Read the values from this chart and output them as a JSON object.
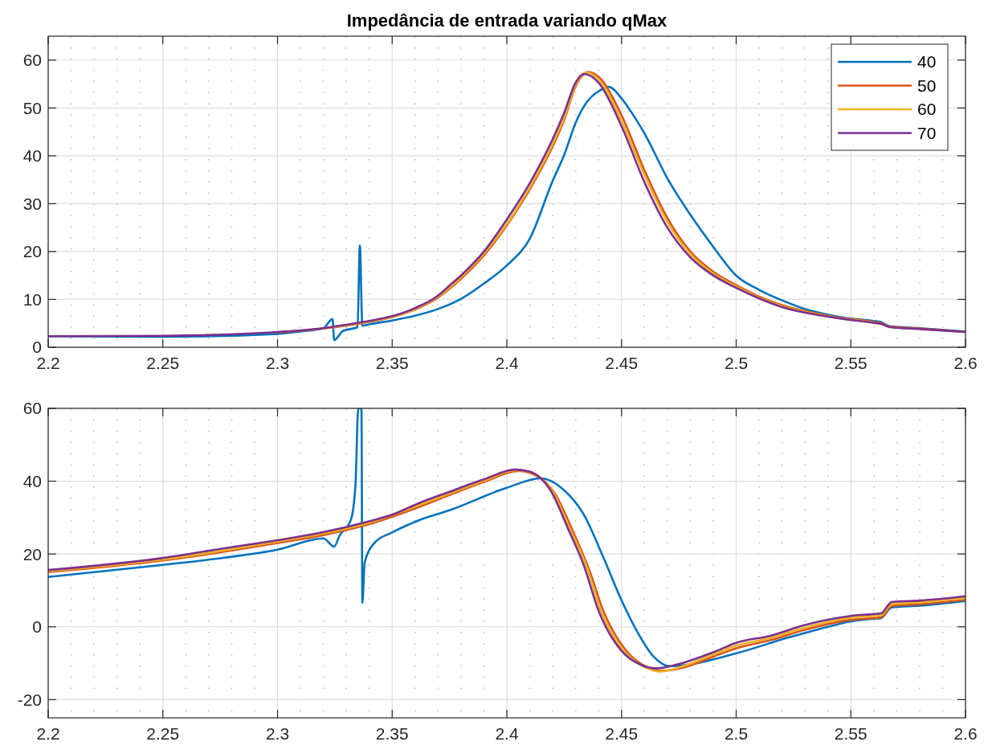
{
  "chart_data": [
    {
      "type": "line",
      "title": "Impedância de entrada variando qMax",
      "xlim": [
        2.2,
        2.6
      ],
      "xticks": [
        2.2,
        2.25,
        2.3,
        2.35,
        2.4,
        2.45,
        2.5,
        2.55,
        2.6
      ],
      "ylim": [
        0,
        65
      ],
      "yticks": [
        0,
        10,
        20,
        30,
        40,
        50,
        60
      ],
      "grid": true,
      "legend": "top right",
      "line_style": "solid",
      "marker": "none",
      "series": [
        {
          "name": "40",
          "color": "#0072bd",
          "x": [
            2.2,
            2.25,
            2.3,
            2.31,
            2.32,
            2.324,
            2.3247,
            2.3285,
            2.3349,
            2.3359,
            2.337,
            2.34,
            2.35,
            2.36,
            2.37,
            2.38,
            2.39,
            2.4,
            2.41,
            2.42,
            2.425,
            2.43,
            2.435,
            2.44,
            2.4445,
            2.45,
            2.455,
            2.46,
            2.47,
            2.48,
            2.49,
            2.5,
            2.51,
            2.52,
            2.53,
            2.54,
            2.55,
            2.56,
            2.563,
            2.567,
            2.58,
            2.6
          ],
          "values": [
            2.3,
            2.2,
            2.8,
            3.3,
            4.0,
            5.9,
            1.5,
            3.4,
            4.2,
            21.3,
            4.5,
            4.8,
            5.6,
            6.6,
            8,
            10.1,
            13.3,
            17.1,
            22.7,
            34.8,
            40.2,
            46.9,
            51.3,
            53.5,
            54.4,
            52,
            48.6,
            44.7,
            35.3,
            27.7,
            21,
            15,
            12,
            9.8,
            8,
            6.8,
            6,
            5.5,
            5.3,
            4.4,
            4,
            3.3
          ]
        },
        {
          "name": "50",
          "color": "#d95319",
          "x": [
            2.3,
            2.32,
            2.34,
            2.35,
            2.36,
            2.37,
            2.38,
            2.39,
            2.4,
            2.41,
            2.42,
            2.425,
            2.43,
            2.4354,
            2.44,
            2.45,
            2.46,
            2.47,
            2.48,
            2.49,
            2.5,
            2.51,
            2.52,
            2.54,
            2.56,
            2.563,
            2.567,
            2.58,
            2.6
          ],
          "values": [
            3.1,
            3.9,
            5.3,
            6.3,
            7.9,
            10.4,
            14.3,
            19.2,
            25.5,
            33,
            42,
            47.5,
            54.5,
            57.5,
            56.5,
            48.5,
            37,
            27,
            20,
            15.8,
            13,
            10.6,
            8.8,
            6.6,
            5.3,
            5.1,
            4.3,
            3.9,
            3.2
          ]
        },
        {
          "name": "60",
          "color": "#edb120",
          "x": [
            2.32,
            2.34,
            2.35,
            2.36,
            2.37,
            2.38,
            2.39,
            2.4,
            2.41,
            2.42,
            2.425,
            2.43,
            2.4348,
            2.44,
            2.45,
            2.46,
            2.47,
            2.48,
            2.49,
            2.5,
            2.51,
            2.52,
            2.54,
            2.56
          ],
          "values": [
            4,
            5.4,
            6.4,
            8,
            10.6,
            14.6,
            19.6,
            25.8,
            33.4,
            42.5,
            48,
            54.8,
            57.4,
            56,
            47.3,
            36,
            26.2,
            19.5,
            15.4,
            12.7,
            10.4,
            8.6,
            6.5,
            5.2
          ]
        },
        {
          "name": "70",
          "color": "#7e2f8e",
          "x": [
            2.2,
            2.25,
            2.3,
            2.32,
            2.33,
            2.34,
            2.35,
            2.36,
            2.37,
            2.375,
            2.38,
            2.39,
            2.4,
            2.41,
            2.42,
            2.425,
            2.43,
            2.4336,
            2.44,
            2.45,
            2.46,
            2.47,
            2.48,
            2.49,
            2.5,
            2.51,
            2.52,
            2.54,
            2.56,
            2.563,
            2.567,
            2.58,
            2.6
          ],
          "values": [
            2.3,
            2.4,
            3.2,
            4.0,
            4.7,
            5.5,
            6.5,
            8.2,
            10.8,
            12.9,
            15,
            20,
            26.7,
            34.3,
            43.5,
            49,
            55.3,
            57.1,
            55.3,
            46.2,
            34.5,
            25,
            18.8,
            15,
            12.4,
            10.2,
            8.4,
            6.4,
            5.1,
            4.9,
            4.2,
            3.8,
            3.2
          ]
        }
      ]
    },
    {
      "type": "line",
      "xlim": [
        2.2,
        2.6
      ],
      "xticks": [
        2.2,
        2.25,
        2.3,
        2.35,
        2.4,
        2.45,
        2.5,
        2.55,
        2.6
      ],
      "ylim": [
        -25,
        60
      ],
      "yticks": [
        -20,
        0,
        20,
        40,
        60
      ],
      "grid": true,
      "legend": false,
      "line_style": "solid",
      "marker": "none",
      "series": [
        {
          "color": "#0072bd",
          "x": [
            2.2,
            2.25,
            2.277,
            2.3,
            2.32,
            2.3247,
            2.327,
            2.332,
            2.334,
            2.3352,
            2.3366,
            2.337,
            2.338,
            2.3425,
            2.3496,
            2.361,
            2.375,
            2.4,
            2.4147,
            2.425,
            2.4335,
            2.442,
            2.45,
            2.457,
            2.464,
            2.471,
            2.48,
            2.5,
            2.5225,
            2.54,
            2.55,
            2.56,
            2.5632,
            2.5678,
            2.58,
            2.6
          ],
          "values": [
            13.7,
            17,
            19,
            21.2,
            24.3,
            22,
            25,
            29.4,
            39,
            60,
            60,
            6.6,
            17.6,
            23.2,
            25.8,
            29.1,
            32,
            38.2,
            40.8,
            37.5,
            30.9,
            19.2,
            7.3,
            -1.5,
            -8.2,
            -10.8,
            -10.3,
            -7.3,
            -3,
            0,
            1.5,
            2.2,
            2.4,
            5.3,
            5.8,
            7.1
          ]
        },
        {
          "color": "#d95319",
          "x": [
            2.2,
            2.25,
            2.3,
            2.32,
            2.34,
            2.36,
            2.375,
            2.39,
            2.405,
            2.413,
            2.421,
            2.429,
            2.436,
            2.442,
            2.452,
            2.461,
            2.468,
            2.477,
            2.49,
            2.5,
            2.5153,
            2.53,
            2.55,
            2.56,
            2.5632,
            2.5678,
            2.58,
            2.6
          ],
          "values": [
            15,
            18.2,
            23,
            25.2,
            28.2,
            32.5,
            36.2,
            39.8,
            42.8,
            41.5,
            36.5,
            26,
            15.5,
            4.5,
            -6.5,
            -11,
            -12.1,
            -11.2,
            -8.2,
            -5.9,
            -3.6,
            -0.8,
            1.9,
            2.4,
            2.6,
            5.7,
            6.2,
            7.4
          ]
        },
        {
          "color": "#edb120",
          "x": [
            2.2,
            2.25,
            2.3,
            2.32,
            2.34,
            2.36,
            2.375,
            2.39,
            2.404,
            2.412,
            2.42,
            2.428,
            2.435,
            2.441,
            2.451,
            2.46,
            2.467,
            2.476,
            2.49,
            2.5,
            2.5153,
            2.53,
            2.55,
            2.56,
            2.5632,
            2.5678,
            2.58,
            2.6
          ],
          "values": [
            15.3,
            18.5,
            23.4,
            25.6,
            28.6,
            33,
            36.6,
            40.1,
            43,
            42,
            37,
            26.3,
            16.2,
            4.4,
            -6.6,
            -11,
            -12.3,
            -11,
            -7.6,
            -5.2,
            -3,
            -0.2,
            2.5,
            3,
            3.2,
            6.2,
            6.7,
            7.9
          ]
        },
        {
          "color": "#7e2f8e",
          "x": [
            2.2,
            2.25,
            2.277,
            2.3,
            2.32,
            2.34,
            2.35,
            2.361,
            2.375,
            2.39,
            2.4036,
            2.41,
            2.419,
            2.427,
            2.4335,
            2.44,
            2.45,
            2.459,
            2.465,
            2.474,
            2.49,
            2.5,
            2.5153,
            2.53,
            2.55,
            2.56,
            2.5632,
            2.5678,
            2.58,
            2.6
          ],
          "values": [
            15.6,
            18.9,
            21.6,
            23.8,
            26,
            29,
            30.8,
            33.8,
            37.1,
            40.5,
            43.2,
            42.6,
            37.5,
            26.5,
            17,
            4.4,
            -6.6,
            -10.6,
            -11.4,
            -10.4,
            -7,
            -4.4,
            -2.4,
            0.5,
            3,
            3.5,
            3.7,
            6.8,
            7.2,
            8.4
          ]
        }
      ]
    }
  ]
}
